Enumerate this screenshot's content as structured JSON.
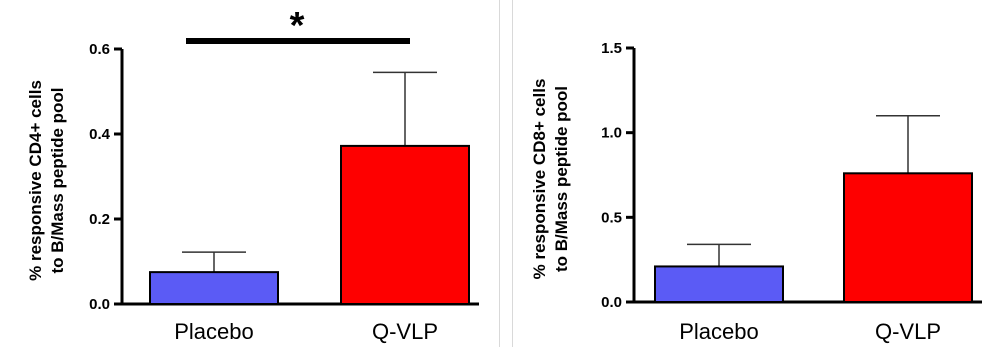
{
  "colors": {
    "placebo": "#5b5bf5",
    "qvlp": "#fe0000",
    "axis": "#000000"
  },
  "chart_data": [
    {
      "type": "bar",
      "categories": [
        "Placebo",
        "Q-VLP"
      ],
      "ylabel_lines": [
        "% responsive CD4+ cells",
        "to B/Mass peptide pool"
      ],
      "ylim": [
        0,
        0.6
      ],
      "yticks": [
        "0.0",
        "0.2",
        "0.4",
        "0.6"
      ],
      "ytick_values": [
        0,
        0.2,
        0.4,
        0.6
      ],
      "series": [
        {
          "values": [
            0.075,
            0.372
          ],
          "error_upper": [
            0.047,
            0.173
          ]
        }
      ],
      "significance": {
        "label": "*",
        "between": [
          "Placebo",
          "Q-VLP"
        ]
      }
    },
    {
      "type": "bar",
      "categories": [
        "Placebo",
        "Q-VLP"
      ],
      "ylabel_lines": [
        "% responsive CD8+ cells",
        "to B/Mass peptide pool"
      ],
      "ylim": [
        0,
        1.5
      ],
      "yticks": [
        "0.0",
        "0.5",
        "1.0",
        "1.5"
      ],
      "ytick_values": [
        0,
        0.5,
        1.0,
        1.5
      ],
      "series": [
        {
          "values": [
            0.21,
            0.76
          ],
          "error_upper": [
            0.13,
            0.34
          ]
        }
      ]
    }
  ]
}
